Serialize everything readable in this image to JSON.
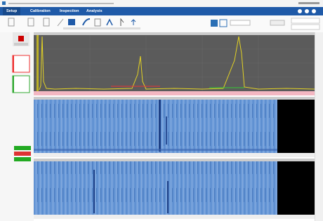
{
  "menu": {
    "tabs": [
      "Setup",
      "Calibration",
      "Inspection",
      "Analysis"
    ]
  }
}
